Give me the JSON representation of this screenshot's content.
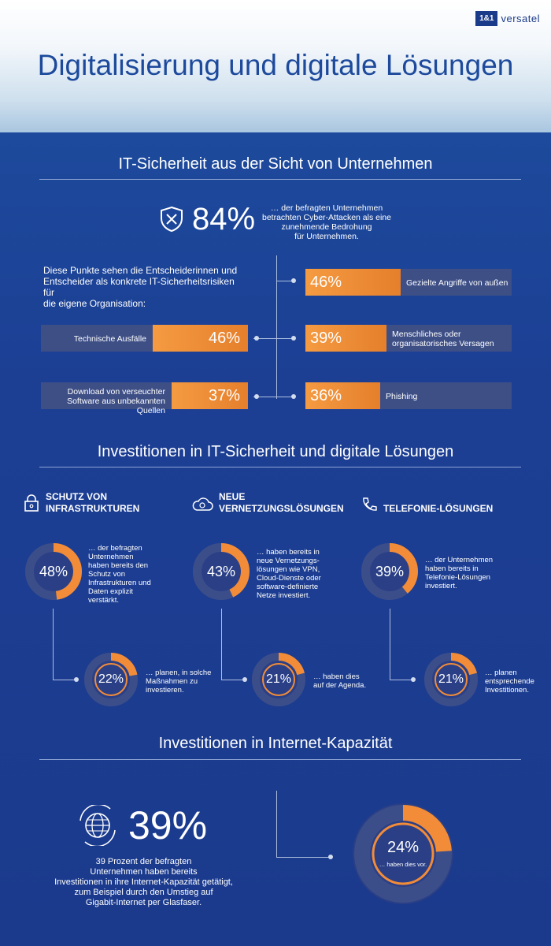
{
  "logo": {
    "mark": "1&1",
    "name": "versatel"
  },
  "title": "Digitalisierung und digitale Lösungen",
  "section1": {
    "title": "IT-Sicherheit aus der Sicht von Unternehmen",
    "headline_value": "84%",
    "headline_text": [
      "… der befragten Unternehmen",
      "betrachten Cyber-Attacken als eine",
      "zunehmende Bedrohung",
      "für Unternehmen."
    ],
    "intro": [
      "Diese Punkte sehen die Entscheiderinnen und",
      "Entscheider als konkrete IT-Sicherheitsrisiken für",
      "die eigene Organisation:"
    ],
    "left_items": [
      {
        "label": [
          "Technische Ausfälle"
        ],
        "value": "46%"
      },
      {
        "label": [
          "Download von verseuchter",
          "Software aus unbekannten Quellen"
        ],
        "value": "37%"
      }
    ],
    "right_items": [
      {
        "label": [
          "Gezielte Angriffe von außen"
        ],
        "value": "46%"
      },
      {
        "label": [
          "Menschliches oder",
          "organisatorisches Versagen"
        ],
        "value": "39%"
      },
      {
        "label": [
          "Phishing"
        ],
        "value": "36%"
      }
    ]
  },
  "section2": {
    "title": "Investitionen in IT-Sicherheit und digitale Lösungen",
    "columns": [
      {
        "icon": "lock-icon",
        "title": [
          "SCHUTZ VON",
          "INFRASTRUKTUREN"
        ],
        "main_value": "48%",
        "main_fraction": 0.48,
        "main_text": [
          "… der befragten",
          "Unternehmen",
          "haben bereits den",
          "Schutz von",
          "Infrastrukturen und",
          "Daten explizit",
          "verstärkt."
        ],
        "sub_value": "22%",
        "sub_fraction": 0.22,
        "sub_text": [
          "… planen, in solche",
          "Maßnahmen zu",
          "investieren."
        ]
      },
      {
        "icon": "cloud-icon",
        "title": [
          "NEUE",
          "VERNETZUNGSLÖSUNGEN"
        ],
        "main_value": "43%",
        "main_fraction": 0.43,
        "main_text": [
          "… haben bereits in",
          "neue Vernetzungs-",
          "lösungen wie VPN,",
          "Cloud-Dienste oder",
          "software-definierte",
          "Netze investiert."
        ],
        "sub_value": "21%",
        "sub_fraction": 0.21,
        "sub_text": [
          "… haben dies",
          "auf der Agenda."
        ]
      },
      {
        "icon": "phone-icon",
        "title": [
          "TELEFONIE-LÖSUNGEN"
        ],
        "main_value": "39%",
        "main_fraction": 0.39,
        "main_text": [
          "… der Unternehmen",
          "haben bereits in",
          "Telefonie-Lösungen",
          "investiert."
        ],
        "sub_value": "21%",
        "sub_fraction": 0.21,
        "sub_text": [
          "… planen",
          "entsprechende",
          "Investitionen."
        ]
      }
    ]
  },
  "section3": {
    "title": "Investitionen in Internet-Kapazität",
    "value": "39%",
    "text": [
      "39 Prozent der befragten",
      "Unternehmen haben bereits",
      "Investitionen in ihre Internet-Kapazität getätigt,",
      "zum Beispiel durch den Umstieg auf",
      "Gigabit-Internet per Glasfaser."
    ],
    "ring_value": "24%",
    "ring_fraction": 0.24,
    "ring_caption": "… haben dies vor."
  },
  "colors": {
    "orange": "#f28c38",
    "track": "#3a4a86",
    "navy": "#1c3f94"
  }
}
